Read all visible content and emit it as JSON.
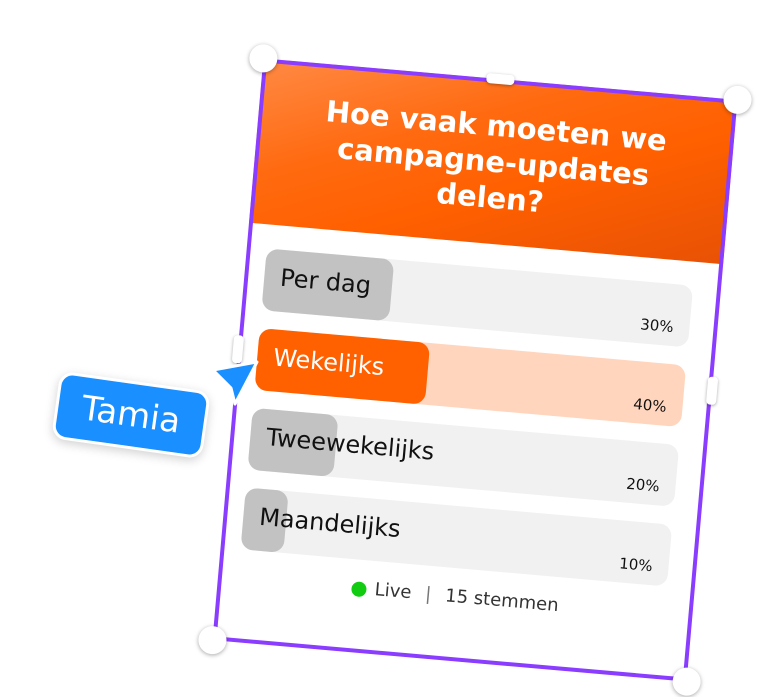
{
  "poll": {
    "question": "Hoe vaak moeten we campagne-updates delen?",
    "options": [
      {
        "label": "Per dag",
        "percent": "30%",
        "value": 30,
        "selected": false
      },
      {
        "label": "Wekelijks",
        "percent": "40%",
        "value": 40,
        "selected": true
      },
      {
        "label": "Tweewekelijks",
        "percent": "20%",
        "value": 20,
        "selected": false
      },
      {
        "label": "Maandelijks",
        "percent": "10%",
        "value": 10,
        "selected": false
      }
    ],
    "status": "Live",
    "separator": "|",
    "votes": "15 stemmen"
  },
  "collaborator": {
    "name": "Tamia",
    "color": "#1a8fff"
  },
  "colors": {
    "accent": "#ff6000",
    "selection": "#8b3dff",
    "live": "#11cc11"
  }
}
